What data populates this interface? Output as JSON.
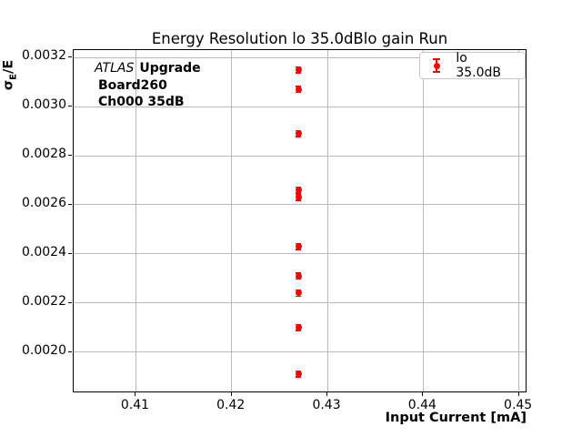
{
  "figure": {
    "background": "#ffffff"
  },
  "chart_data": {
    "type": "scatter",
    "title": "Energy Resolution lo 35.0dBlo gain Run",
    "xlabel": "Input Current [mA]",
    "ylabel": {
      "sigma": "σ",
      "sub": "E",
      "rest": "/E"
    },
    "xlim": [
      0.4035,
      0.4507
    ],
    "ylim": [
      0.001839,
      0.003231
    ],
    "xticks": [
      "0.41",
      "0.42",
      "0.43",
      "0.44",
      "0.45"
    ],
    "yticks": [
      "0.0020",
      "0.0022",
      "0.0024",
      "0.0026",
      "0.0028",
      "0.0030",
      "0.0032"
    ],
    "grid": true,
    "grid_color": "#b9b9b9",
    "legend_position": "upper-right",
    "series": [
      {
        "name": "lo 35.0dB",
        "color": "#ff0000",
        "marker": "circle-with-errorbar",
        "x": [
          0.427,
          0.427,
          0.427,
          0.427,
          0.427,
          0.427,
          0.427,
          0.427,
          0.427,
          0.427
        ],
        "y": [
          0.00315,
          0.00307,
          0.00289,
          0.00266,
          0.00263,
          0.00243,
          0.00231,
          0.00224,
          0.0021,
          0.00191
        ],
        "yerr": 1.5e-05
      }
    ],
    "legend": {
      "label": "lo 35.0dB",
      "color": "#ff0000"
    },
    "annotation": {
      "line1_italic": "ATLAS",
      "line1_bold": "Upgrade",
      "line2": "Board260",
      "line3": "Ch000 35dB"
    }
  }
}
